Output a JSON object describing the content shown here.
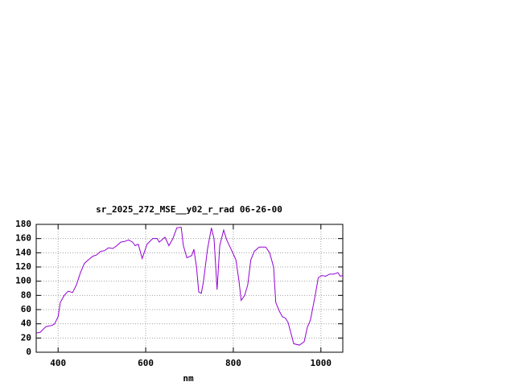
{
  "chart_data": {
    "type": "line",
    "title": "sr_2025_272_MSE__y02_r_rad 06-26-00",
    "xlabel": "nm",
    "x": [
      350,
      359,
      372,
      387,
      392,
      400,
      405,
      414,
      423,
      433,
      442,
      451,
      460,
      469,
      479,
      488,
      497,
      506,
      515,
      525,
      534,
      543,
      552,
      561,
      570,
      576,
      583,
      592,
      603,
      616,
      626,
      631,
      644,
      653,
      662,
      671,
      681,
      686,
      694,
      705,
      710,
      716,
      721,
      727,
      732,
      741,
      750,
      756,
      763,
      769,
      778,
      785,
      795,
      806,
      813,
      818,
      826,
      833,
      840,
      848,
      859,
      874,
      883,
      892,
      897,
      905,
      912,
      919,
      925,
      938,
      951,
      962,
      969,
      976,
      987,
      994,
      1002,
      1011,
      1020,
      1029,
      1039,
      1044,
      1050
    ],
    "series": [
      {
        "name": "sr_2025_272_MSE__y02_r_rad",
        "color": "#9400d3",
        "values": [
          27,
          28,
          36,
          38,
          40,
          50,
          70,
          80,
          86,
          84,
          95,
          112,
          125,
          130,
          135,
          137,
          142,
          143,
          147,
          146,
          150,
          155,
          156,
          158,
          155,
          150,
          152,
          132,
          152,
          160,
          160,
          155,
          162,
          150,
          160,
          175,
          176,
          150,
          133,
          136,
          145,
          120,
          85,
          83,
          100,
          145,
          175,
          160,
          88,
          150,
          172,
          158,
          145,
          130,
          100,
          73,
          80,
          95,
          130,
          142,
          148,
          148,
          140,
          120,
          70,
          58,
          50,
          48,
          42,
          12,
          10,
          15,
          35,
          45,
          80,
          105,
          108,
          107,
          110,
          110,
          112,
          107,
          108
        ]
      }
    ],
    "xlim": [
      350,
      1050
    ],
    "xticks": [
      400,
      600,
      800,
      1000
    ],
    "ylim": [
      0,
      180
    ],
    "yticks": [
      0,
      20,
      40,
      60,
      80,
      100,
      120,
      140,
      160,
      180
    ],
    "grid": true
  }
}
